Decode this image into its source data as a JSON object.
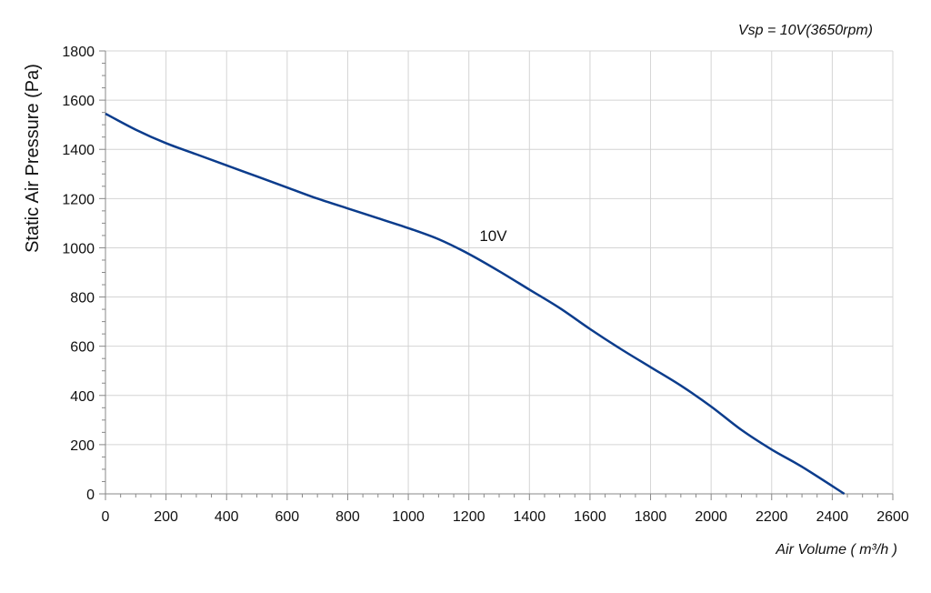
{
  "chart_data": {
    "type": "line",
    "title": "Vsp = 10V(3650rpm)",
    "xlabel": "Air Volume ( m³/h )",
    "ylabel": "Static Air Pressure  (Pa)",
    "xlim": [
      0,
      2600
    ],
    "ylim": [
      0,
      1800
    ],
    "x_ticks": [
      0,
      200,
      400,
      600,
      800,
      1000,
      1200,
      1400,
      1600,
      1800,
      2000,
      2200,
      2400,
      2600
    ],
    "y_ticks": [
      0,
      200,
      400,
      600,
      800,
      1000,
      1200,
      1400,
      1600,
      1800
    ],
    "x_tick_labels": [
      "0",
      "200",
      "400",
      "600",
      "800",
      "1000",
      "1200",
      "1400",
      "1600",
      "1800",
      "2000",
      "2200",
      "2400",
      "2600"
    ],
    "y_tick_labels": [
      "0",
      "200",
      "400",
      "600",
      "800",
      "1000",
      "1200",
      "1400",
      "1600",
      "1800"
    ],
    "grid": true,
    "series": [
      {
        "name": "10V",
        "color": "#0b3c8c",
        "x": [
          0,
          100,
          200,
          300,
          400,
          500,
          600,
          700,
          800,
          900,
          1000,
          1100,
          1200,
          1300,
          1400,
          1500,
          1600,
          1700,
          1800,
          1900,
          2000,
          2100,
          2200,
          2300,
          2440
        ],
        "y": [
          1545,
          1480,
          1425,
          1380,
          1335,
          1290,
          1245,
          1200,
          1160,
          1120,
          1080,
          1035,
          975,
          905,
          830,
          755,
          670,
          590,
          515,
          440,
          355,
          260,
          180,
          110,
          0
        ]
      }
    ],
    "annotations": [
      {
        "text": "10V",
        "x": 1220,
        "y": 1050
      }
    ]
  }
}
